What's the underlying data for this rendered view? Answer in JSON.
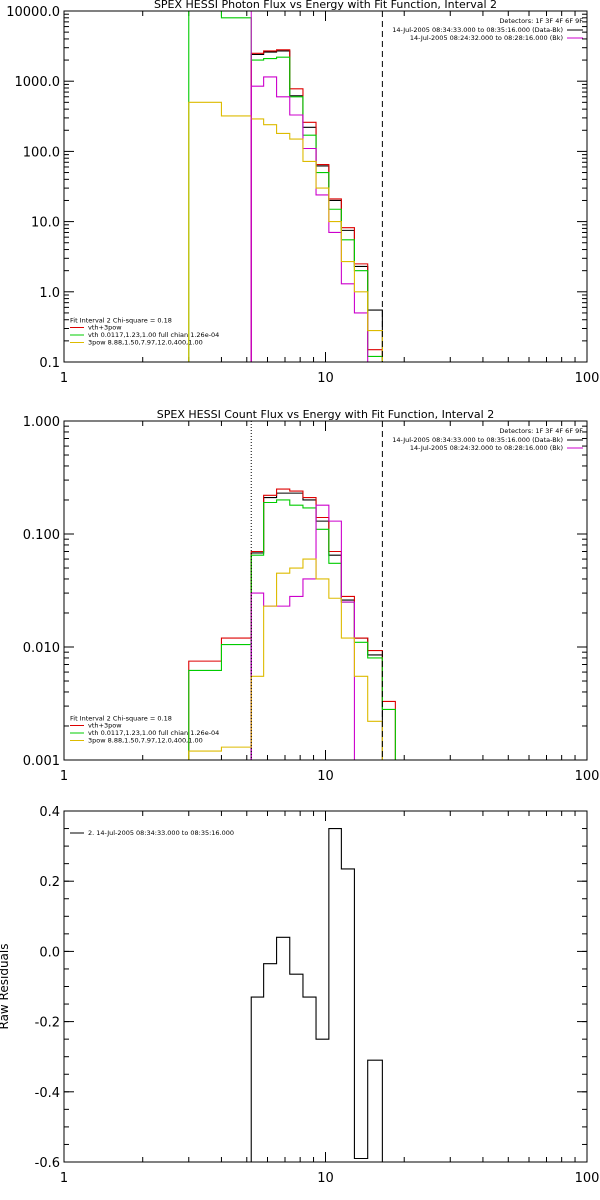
{
  "chart_data": [
    {
      "type": "line",
      "title": "SPEX HESSI Photon Flux vs Energy with Fit Function, Interval 2",
      "xlabel": "",
      "ylabel": "",
      "x_scale": "log",
      "y_scale": "log",
      "xlim": [
        1,
        100
      ],
      "ylim": [
        0.1,
        10000
      ],
      "x_ticks": [
        {
          "v": 1,
          "label": "1"
        },
        {
          "v": 10,
          "label": "10"
        },
        {
          "v": 100,
          "label": "100"
        }
      ],
      "y_ticks": [
        {
          "v": 0.1,
          "label": "0.1"
        },
        {
          "v": 1,
          "label": "1.0"
        },
        {
          "v": 10,
          "label": "10.0"
        },
        {
          "v": 100,
          "label": "100.0"
        },
        {
          "v": 1000,
          "label": "1000.0"
        },
        {
          "v": 10000,
          "label": "10000.0"
        }
      ],
      "vlines": [
        {
          "x": 5.2,
          "style": "solid",
          "color": "#cc00cc"
        },
        {
          "x": 16.5,
          "style": "dashed",
          "color": "#000000"
        }
      ],
      "legend_right": {
        "placement": "top-right",
        "header": "Detectors: 1F 3F 4F 6F 9F",
        "lines": [
          {
            "text": "14-Jul-2005 08:34:33.000 to 08:35:16.000 (Data-Bk)",
            "color": "#000000"
          },
          {
            "text": "14-Jul-2005 08:24:32.000 to 08:28:16.000 (Bk)",
            "color": "#cc00cc"
          }
        ]
      },
      "legend_left": {
        "placement": "bottom-left",
        "header": "Fit Interval 2   Chi-square = 0.18",
        "lines": [
          {
            "text": "vth+3pow",
            "color": "#dd0000"
          },
          {
            "text": "vth 0.0117,1.23,1.00  full chian 1.26e-04",
            "color": "#00cc00"
          },
          {
            "text": "3pow 8.88,1.50,7.97,12.0,400,1.00",
            "color": "#ddbb00"
          }
        ]
      },
      "series": [
        {
          "color": "#000000",
          "edges": [
            5.2,
            5.8,
            6.5,
            7.3,
            8.2,
            9.2,
            10.3,
            11.5,
            12.9,
            14.5,
            16.5
          ],
          "values": [
            2400,
            2600,
            2700,
            620,
            220,
            62,
            20,
            7.5,
            2.3,
            0.55
          ]
        },
        {
          "color": "#dd0000",
          "edges": [
            5.2,
            5.8,
            6.5,
            7.3,
            8.2,
            9.2,
            10.3,
            11.5,
            12.9,
            14.5,
            16.5
          ],
          "values": [
            2500,
            2700,
            2800,
            780,
            260,
            65,
            21,
            8.2,
            2.5,
            0.15
          ]
        },
        {
          "color": "#00cc00",
          "edges": [
            3.0,
            4.0,
            5.2,
            5.8,
            6.5,
            7.3,
            8.2,
            9.2,
            10.3,
            11.5,
            12.9,
            14.5,
            16.5
          ],
          "values": [
            15000,
            8000,
            2000,
            2100,
            2200,
            600,
            170,
            50,
            15,
            5.5,
            2.0,
            0.12
          ]
        },
        {
          "color": "#cc00cc",
          "edges": [
            5.2,
            5.8,
            6.5,
            7.3,
            8.2,
            9.2,
            10.3,
            11.5,
            12.9,
            14.5
          ],
          "values": [
            850,
            1150,
            600,
            330,
            110,
            24,
            7,
            1.3,
            0.5
          ]
        },
        {
          "color": "#ddbb00",
          "edges": [
            3.0,
            4.0,
            5.2,
            5.8,
            6.5,
            7.3,
            8.2,
            9.2,
            10.3,
            11.5,
            12.9,
            14.5,
            16.5
          ],
          "values": [
            500,
            320,
            290,
            240,
            180,
            150,
            72,
            30,
            10,
            2.7,
            1.0,
            0.28
          ]
        }
      ]
    },
    {
      "type": "line",
      "title": "SPEX HESSI Count Flux vs Energy with Fit Function, Interval 2",
      "xlabel": "",
      "ylabel": "",
      "x_scale": "log",
      "y_scale": "log",
      "xlim": [
        1,
        100
      ],
      "ylim": [
        0.001,
        1
      ],
      "x_ticks": [
        {
          "v": 1,
          "label": "1"
        },
        {
          "v": 10,
          "label": "10"
        },
        {
          "v": 100,
          "label": "100"
        }
      ],
      "y_ticks": [
        {
          "v": 0.001,
          "label": "0.001"
        },
        {
          "v": 0.01,
          "label": "0.010"
        },
        {
          "v": 0.1,
          "label": "0.100"
        },
        {
          "v": 1,
          "label": "1.000"
        }
      ],
      "vlines": [
        {
          "x": 5.2,
          "style": "dotted",
          "color": "#000000"
        },
        {
          "x": 16.5,
          "style": "dashed",
          "color": "#000000"
        }
      ],
      "legend_right": {
        "placement": "top-right",
        "header": "Detectors: 1F 3F 4F 6F 9F",
        "lines": [
          {
            "text": "14-Jul-2005 08:34:33.000 to 08:35:16.000 (Data-Bk)",
            "color": "#000000"
          },
          {
            "text": "14-Jul-2005 08:24:32.000 to 08:28:16.000 (Bk)",
            "color": "#cc00cc"
          }
        ]
      },
      "legend_left": {
        "placement": "bottom-left",
        "header": "Fit Interval 2   Chi-square = 0.18",
        "lines": [
          {
            "text": "vth+3pow",
            "color": "#dd0000"
          },
          {
            "text": "vth 0.0117,1.23,1.00  full chian 1.26e-04",
            "color": "#00cc00"
          },
          {
            "text": "3pow 8.88,1.50,7.97,12.0,400,1.00",
            "color": "#ddbb00"
          }
        ]
      },
      "series": [
        {
          "color": "#000000",
          "edges": [
            5.2,
            5.8,
            6.5,
            7.3,
            8.2,
            9.2,
            10.3,
            11.5,
            12.9,
            14.5,
            16.5
          ],
          "values": [
            0.068,
            0.21,
            0.23,
            0.23,
            0.2,
            0.13,
            0.065,
            0.026,
            0.012,
            0.0085
          ]
        },
        {
          "color": "#dd0000",
          "edges": [
            3.0,
            4.0,
            5.2,
            5.8,
            6.5,
            7.3,
            8.2,
            9.2,
            10.3,
            11.5,
            12.9,
            14.5,
            16.5,
            18.5
          ],
          "values": [
            0.0075,
            0.012,
            0.07,
            0.22,
            0.25,
            0.24,
            0.21,
            0.14,
            0.07,
            0.028,
            0.012,
            0.0093,
            0.0033
          ]
        },
        {
          "color": "#00cc00",
          "edges": [
            3.0,
            4.0,
            5.2,
            5.8,
            6.5,
            7.3,
            8.2,
            9.2,
            10.3,
            11.5,
            12.9,
            14.5,
            16.5,
            18.5
          ],
          "values": [
            0.0062,
            0.0105,
            0.065,
            0.19,
            0.2,
            0.18,
            0.17,
            0.11,
            0.055,
            0.025,
            0.011,
            0.008,
            0.0028
          ]
        },
        {
          "color": "#cc00cc",
          "edges": [
            5.2,
            5.8,
            6.5,
            7.3,
            8.2,
            9.2,
            10.3,
            11.5,
            12.9
          ],
          "values": [
            0.03,
            0.023,
            0.023,
            0.028,
            0.04,
            0.18,
            0.13,
            0.025
          ]
        },
        {
          "color": "#ddbb00",
          "edges": [
            3.0,
            4.0,
            5.2,
            5.8,
            6.5,
            7.3,
            8.2,
            9.2,
            10.3,
            11.5,
            12.9,
            14.5,
            16.5
          ],
          "values": [
            0.0012,
            0.0013,
            0.0055,
            0.023,
            0.045,
            0.05,
            0.06,
            0.04,
            0.027,
            0.012,
            0.0055,
            0.0022
          ]
        }
      ]
    },
    {
      "type": "line",
      "title": "",
      "xlabel": "",
      "ylabel": "Raw Residuals",
      "x_scale": "log",
      "y_scale": "linear",
      "xlim": [
        1,
        100
      ],
      "ylim": [
        -0.6,
        0.4
      ],
      "x_ticks": [
        {
          "v": 1,
          "label": "1"
        },
        {
          "v": 10,
          "label": "10"
        },
        {
          "v": 100,
          "label": "100"
        }
      ],
      "y_ticks": [
        {
          "v": 0.4,
          "label": "0.4"
        },
        {
          "v": 0.2,
          "label": "0.2"
        },
        {
          "v": 0.0,
          "label": "0.0"
        },
        {
          "v": -0.2,
          "label": "-0.2"
        },
        {
          "v": -0.4,
          "label": "-0.4"
        },
        {
          "v": -0.6,
          "label": "-0.6"
        }
      ],
      "legend_left": {
        "placement": "top-left",
        "lines": [
          {
            "text": "2. 14-Jul-2005 08:34:33.000 to 08:35:16.000",
            "color": "#000000"
          }
        ]
      },
      "series": [
        {
          "color": "#000000",
          "edges": [
            5.2,
            5.8,
            6.5,
            7.3,
            8.2,
            9.2,
            10.3,
            11.5,
            12.9,
            14.5,
            16.5
          ],
          "values": [
            -0.13,
            -0.035,
            0.04,
            -0.065,
            -0.13,
            -0.25,
            0.35,
            0.235,
            -0.59,
            -0.31
          ],
          "baseline": -0.6
        }
      ]
    }
  ]
}
